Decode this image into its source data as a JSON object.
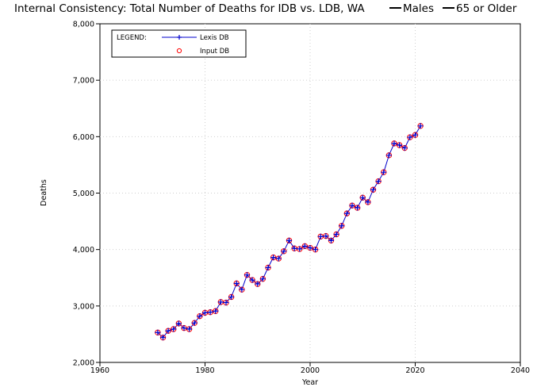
{
  "chart_data": {
    "type": "line",
    "title": "Internal Consistency: Total Number of Deaths for IDB vs. LDB, WA",
    "title_suffix": [
      {
        "label": "Males",
        "marker": "line"
      },
      {
        "label": "65 or Older",
        "marker": "line"
      }
    ],
    "xlabel": "Year",
    "ylabel": "Deaths",
    "xlim": [
      1960,
      2040
    ],
    "ylim": [
      2000,
      8000
    ],
    "x_ticks": [
      1960,
      1980,
      2000,
      2020,
      2040
    ],
    "x_tick_labels": [
      "1960",
      "1980",
      "2000",
      "2020",
      "2040"
    ],
    "y_ticks": [
      2000,
      3000,
      4000,
      5000,
      6000,
      7000,
      8000
    ],
    "y_tick_labels": [
      "2,000",
      "3,000",
      "4,000",
      "5,000",
      "6,000",
      "7,000",
      "8,000"
    ],
    "grid": true,
    "legend": {
      "placement": "top-left",
      "heading": "LEGEND:",
      "entries": [
        "Lexis DB",
        "Input DB"
      ]
    },
    "x": [
      1971,
      1972,
      1973,
      1974,
      1975,
      1976,
      1977,
      1978,
      1979,
      1980,
      1981,
      1982,
      1983,
      1984,
      1985,
      1986,
      1987,
      1988,
      1989,
      1990,
      1991,
      1992,
      1993,
      1994,
      1995,
      1996,
      1997,
      1998,
      1999,
      2000,
      2001,
      2002,
      2003,
      2004,
      2005,
      2006,
      2007,
      2008,
      2009,
      2010,
      2011,
      2012,
      2013,
      2014,
      2015,
      2016,
      2017,
      2018,
      2019,
      2020,
      2021
    ],
    "series": [
      {
        "name": "Lexis DB",
        "color": "#0000cc",
        "marker": "plus",
        "values": [
          2530,
          2440,
          2560,
          2590,
          2690,
          2610,
          2590,
          2700,
          2820,
          2880,
          2890,
          2910,
          3070,
          3060,
          3160,
          3400,
          3290,
          3550,
          3460,
          3390,
          3480,
          3680,
          3860,
          3840,
          3970,
          4160,
          4020,
          4010,
          4060,
          4030,
          4000,
          4230,
          4240,
          4160,
          4270,
          4420,
          4640,
          4780,
          4740,
          4920,
          4840,
          5060,
          5210,
          5370,
          5670,
          5880,
          5850,
          5800,
          5990,
          6030,
          6190
        ]
      },
      {
        "name": "Input DB",
        "color": "#ff0000",
        "marker": "circle",
        "values": [
          2530,
          2440,
          2560,
          2590,
          2690,
          2610,
          2590,
          2700,
          2820,
          2880,
          2890,
          2910,
          3070,
          3060,
          3160,
          3400,
          3290,
          3550,
          3460,
          3390,
          3480,
          3680,
          3860,
          3840,
          3970,
          4160,
          4020,
          4010,
          4060,
          4030,
          4000,
          4230,
          4240,
          4160,
          4270,
          4420,
          4640,
          4780,
          4740,
          4920,
          4840,
          5060,
          5210,
          5370,
          5670,
          5880,
          5850,
          5800,
          5990,
          6030,
          6190
        ]
      }
    ]
  }
}
